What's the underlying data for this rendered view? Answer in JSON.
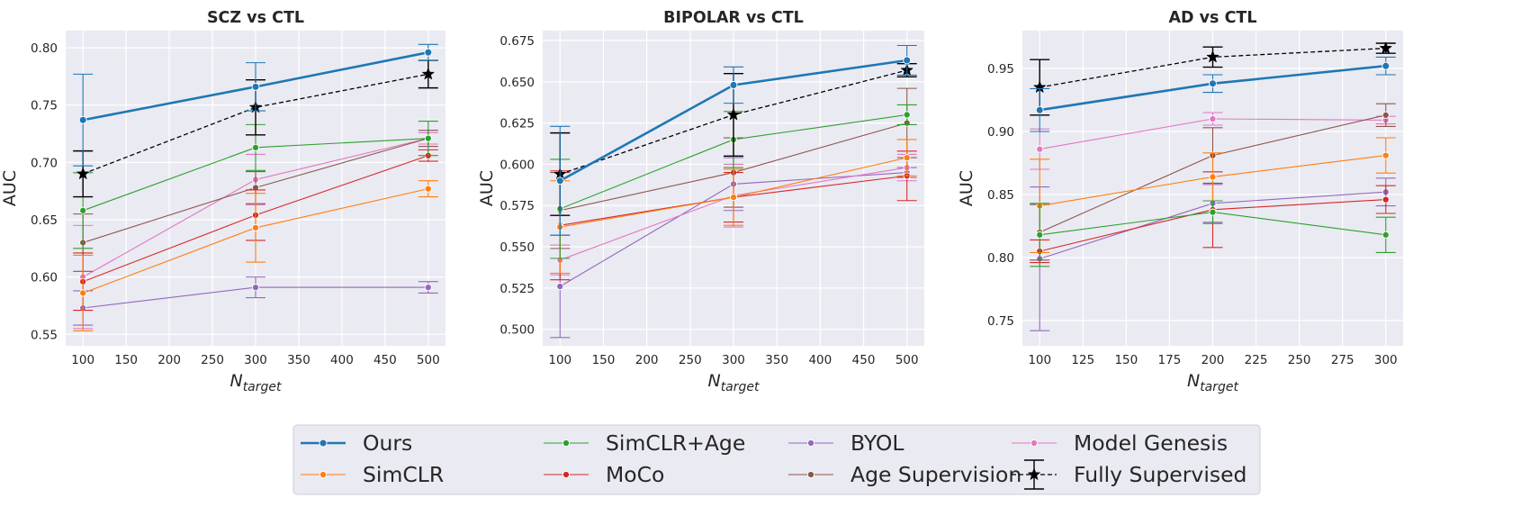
{
  "colors": {
    "ours": "#1f77b4",
    "simclr": "#ff7f0e",
    "simclr_age": "#2ca02c",
    "moco": "#d62728",
    "byol": "#9467bd",
    "age_supervision": "#8c564b",
    "model_genesis": "#e377c2",
    "fully_supervised": "#000000",
    "panel_bg": "#eaeaf2",
    "grid": "#ffffff"
  },
  "legend": {
    "placement": "bottom-center",
    "entries": [
      {
        "key": "ours",
        "label": "Ours"
      },
      {
        "key": "simclr",
        "label": "SimCLR"
      },
      {
        "key": "simclr_age",
        "label": "SimCLR+Age"
      },
      {
        "key": "moco",
        "label": "MoCo"
      },
      {
        "key": "byol",
        "label": "BYOL"
      },
      {
        "key": "age_supervision",
        "label": "Age Supervision"
      },
      {
        "key": "model_genesis",
        "label": "Model Genesis"
      },
      {
        "key": "fully_supervised",
        "label": "Fully Supervised"
      }
    ]
  },
  "chart_data": [
    {
      "type": "line",
      "title": "SCZ vs CTL",
      "xlabel_main": "N",
      "xlabel_sub": "target",
      "ylabel": "AUC",
      "xlim": [
        80,
        520
      ],
      "ylim": [
        0.54,
        0.815
      ],
      "xticks": [
        100,
        150,
        200,
        250,
        300,
        350,
        400,
        450,
        500
      ],
      "yticks": [
        0.55,
        0.6,
        0.65,
        0.7,
        0.75,
        0.8
      ],
      "ytick_labels": [
        "0.55",
        "0.60",
        "0.65",
        "0.70",
        "0.75",
        "0.80"
      ],
      "grid": true,
      "x": [
        100,
        300,
        500
      ],
      "series": [
        {
          "key": "byol",
          "values": [
            0.573,
            0.591,
            0.591
          ],
          "errors": [
            0.015,
            0.009,
            0.005
          ]
        },
        {
          "key": "model_genesis",
          "values": [
            0.6,
            0.685,
            0.721
          ],
          "errors": [
            0.045,
            0.022,
            0.005
          ]
        },
        {
          "key": "age_supervision",
          "values": [
            0.63,
            0.678,
            0.721
          ],
          "errors": [
            0.025,
            0.014,
            0.007
          ]
        },
        {
          "key": "moco",
          "values": [
            0.596,
            0.654,
            0.706
          ],
          "errors": [
            0.025,
            0.022,
            0.005
          ]
        },
        {
          "key": "simclr",
          "values": [
            0.586,
            0.643,
            0.677
          ],
          "errors": [
            0.033,
            0.03,
            0.007
          ]
        },
        {
          "key": "simclr_age",
          "values": [
            0.658,
            0.713,
            0.721
          ],
          "errors": [
            0.033,
            0.02,
            0.015
          ]
        },
        {
          "key": "fully_supervised",
          "values": [
            0.69,
            0.748,
            0.777
          ],
          "errors": [
            0.02,
            0.024,
            0.012
          ]
        },
        {
          "key": "ours",
          "values": [
            0.737,
            0.766,
            0.796
          ],
          "errors": [
            0.04,
            0.021,
            0.007
          ]
        }
      ]
    },
    {
      "type": "line",
      "title": "BIPOLAR vs CTL",
      "xlabel_main": "N",
      "xlabel_sub": "target",
      "ylabel": "AUC",
      "xlim": [
        80,
        520
      ],
      "ylim": [
        0.49,
        0.681
      ],
      "xticks": [
        100,
        150,
        200,
        250,
        300,
        350,
        400,
        450,
        500
      ],
      "yticks": [
        0.5,
        0.525,
        0.55,
        0.575,
        0.6,
        0.625,
        0.65,
        0.675
      ],
      "ytick_labels": [
        "0.500",
        "0.525",
        "0.550",
        "0.575",
        "0.600",
        "0.625",
        "0.650",
        "0.675"
      ],
      "grid": true,
      "x": [
        100,
        300,
        500
      ],
      "series": [
        {
          "key": "byol",
          "values": [
            0.526,
            0.588,
            0.595
          ],
          "errors": [
            0.031,
            0.016,
            0.003
          ]
        },
        {
          "key": "model_genesis",
          "values": [
            0.542,
            0.581,
            0.598
          ],
          "errors": [
            0.009,
            0.019,
            0.008
          ]
        },
        {
          "key": "age_supervision",
          "values": [
            0.572,
            0.595,
            0.625
          ],
          "errors": [
            0.023,
            0.021,
            0.021
          ]
        },
        {
          "key": "moco",
          "values": [
            0.563,
            0.58,
            0.593
          ],
          "errors": [
            0.033,
            0.015,
            0.015
          ]
        },
        {
          "key": "simclr",
          "values": [
            0.562,
            0.58,
            0.604
          ],
          "errors": [
            0.028,
            0.017,
            0.011
          ]
        },
        {
          "key": "simclr_age",
          "values": [
            0.573,
            0.615,
            0.63
          ],
          "errors": [
            0.03,
            0.017,
            0.006
          ]
        },
        {
          "key": "fully_supervised",
          "values": [
            0.594,
            0.63,
            0.657
          ],
          "errors": [
            0.025,
            0.025,
            0.004
          ]
        },
        {
          "key": "ours",
          "values": [
            0.59,
            0.648,
            0.663
          ],
          "errors": [
            0.033,
            0.011,
            0.009
          ]
        }
      ]
    },
    {
      "type": "line",
      "title": "AD vs CTL",
      "xlabel_main": "N",
      "xlabel_sub": "target",
      "ylabel": "AUC",
      "xlim": [
        90,
        310
      ],
      "ylim": [
        0.73,
        0.98
      ],
      "xticks": [
        100,
        125,
        150,
        175,
        200,
        225,
        250,
        275,
        300
      ],
      "yticks": [
        0.75,
        0.8,
        0.85,
        0.9,
        0.95
      ],
      "ytick_labels": [
        "0.75",
        "0.80",
        "0.85",
        "0.90",
        "0.95"
      ],
      "grid": true,
      "x": [
        100,
        200,
        300
      ],
      "series": [
        {
          "key": "byol",
          "values": [
            0.799,
            0.843,
            0.852
          ],
          "errors": [
            0.057,
            0.015,
            0.011
          ]
        },
        {
          "key": "model_genesis",
          "values": [
            0.886,
            0.91,
            0.909
          ],
          "errors": [
            0.016,
            0.005,
            0.003
          ]
        },
        {
          "key": "age_supervision",
          "values": [
            0.82,
            0.881,
            0.913
          ],
          "errors": [
            0.022,
            0.022,
            0.009
          ]
        },
        {
          "key": "moco",
          "values": [
            0.805,
            0.838,
            0.846
          ],
          "errors": [
            0.009,
            0.03,
            0.011
          ]
        },
        {
          "key": "simclr",
          "values": [
            0.841,
            0.864,
            0.881
          ],
          "errors": [
            0.037,
            0.019,
            0.014
          ]
        },
        {
          "key": "simclr_age",
          "values": [
            0.818,
            0.836,
            0.818
          ],
          "errors": [
            0.025,
            0.009,
            0.014
          ]
        },
        {
          "key": "fully_supervised",
          "values": [
            0.935,
            0.959,
            0.966
          ],
          "errors": [
            0.022,
            0.008,
            0.004
          ]
        },
        {
          "key": "ours",
          "values": [
            0.917,
            0.938,
            0.952
          ],
          "errors": [
            0.017,
            0.007,
            0.007
          ]
        }
      ]
    }
  ]
}
